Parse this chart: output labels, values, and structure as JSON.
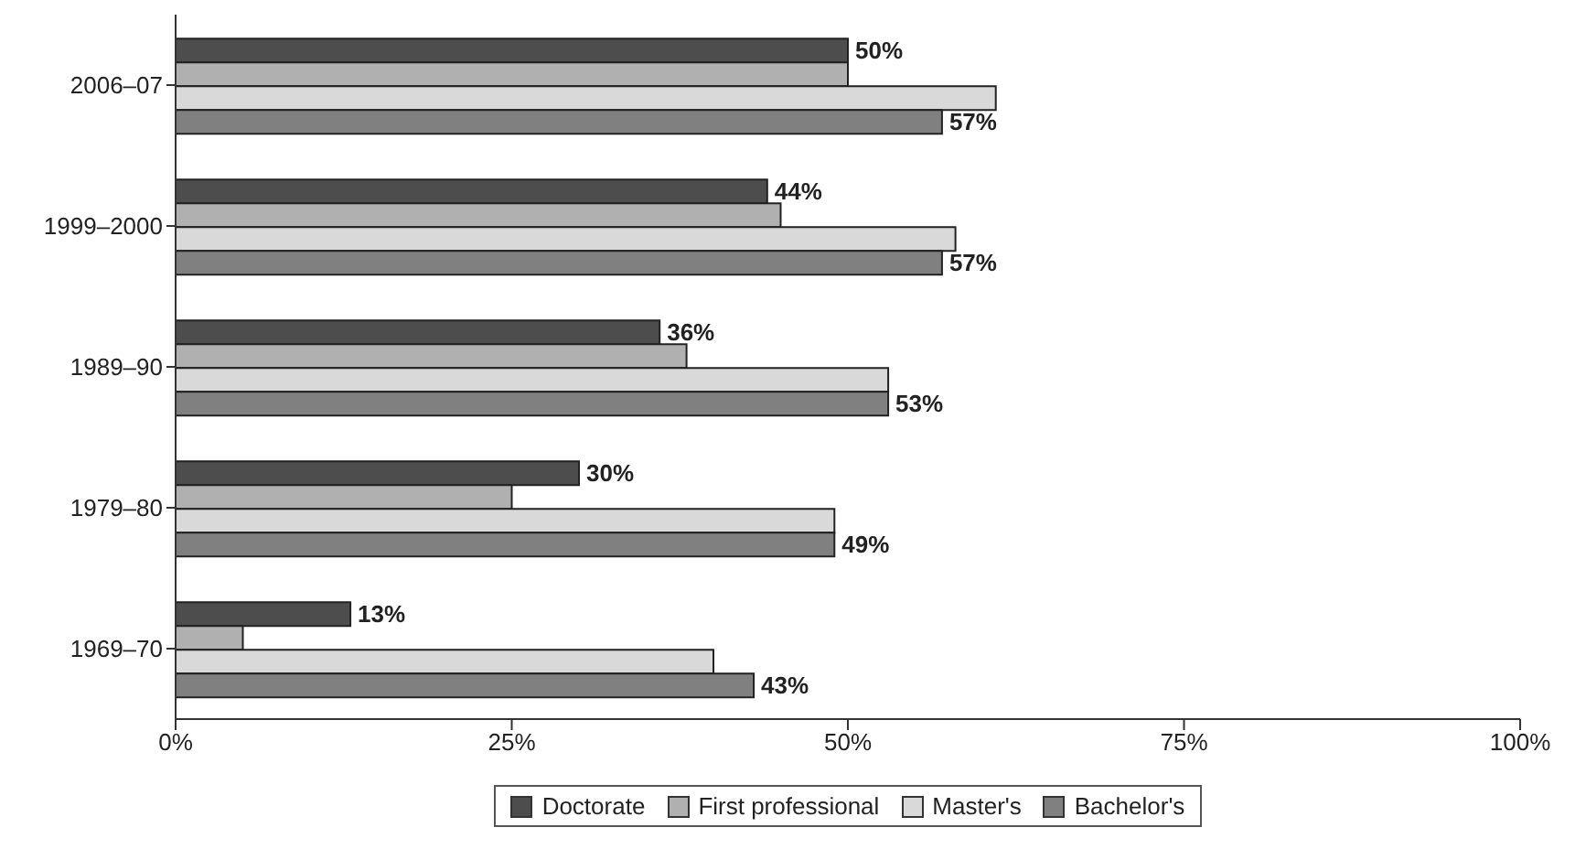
{
  "chart_data": {
    "type": "bar",
    "orientation": "horizontal",
    "categories": [
      "2006–07",
      "1999–2000",
      "1989–90",
      "1979–80",
      "1969–70"
    ],
    "series": [
      {
        "name": "Doctorate",
        "color": "#4d4d4d",
        "values": [
          50,
          44,
          36,
          30,
          13
        ],
        "value_labels": [
          "50%",
          "44%",
          "36%",
          "30%",
          "13%"
        ]
      },
      {
        "name": "First professional",
        "color": "#b0b0b0",
        "values": [
          50,
          45,
          38,
          25,
          5
        ]
      },
      {
        "name": "Master's",
        "color": "#d9d9d9",
        "values": [
          61,
          58,
          53,
          49,
          40
        ]
      },
      {
        "name": "Bachelor's",
        "color": "#808080",
        "values": [
          57,
          57,
          53,
          49,
          43
        ],
        "value_labels": [
          "57%",
          "57%",
          "53%",
          "49%",
          "43%"
        ]
      }
    ],
    "xlim": [
      0,
      100
    ],
    "xticks": [
      {
        "value": 0,
        "label": "0%"
      },
      {
        "value": 25,
        "label": "25%"
      },
      {
        "value": 50,
        "label": "50%"
      },
      {
        "value": 75,
        "label": "75%"
      },
      {
        "value": 100,
        "label": "100%"
      }
    ],
    "grid": false,
    "legend": "bottom"
  }
}
